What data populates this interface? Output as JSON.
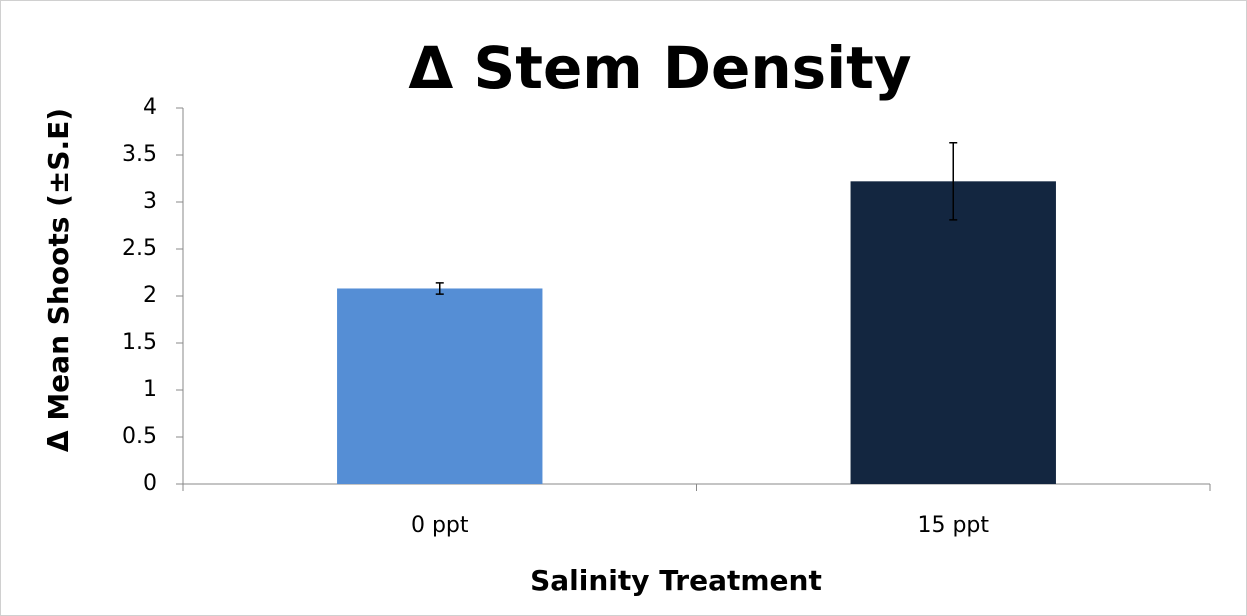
{
  "chart_data": {
    "type": "bar",
    "title": "Δ  Stem Density",
    "y_label": "Δ Mean Shoots (±S.E)",
    "x_label": "Salinity Treatment",
    "categories": [
      "0 ppt",
      "15 ppt"
    ],
    "values": [
      2.08,
      3.22
    ],
    "errors": [
      0.06,
      0.41
    ],
    "colors": [
      "#558ed5",
      "#132640"
    ],
    "ylim": [
      0,
      4
    ],
    "yticks": [
      0,
      0.5,
      1,
      1.5,
      2,
      2.5,
      3,
      3.5,
      4
    ],
    "grid": false
  }
}
